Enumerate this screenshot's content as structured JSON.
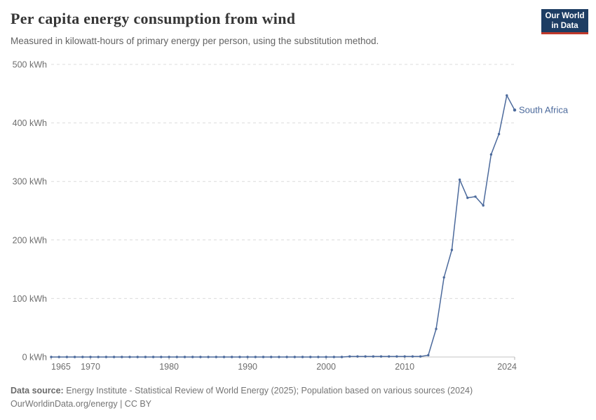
{
  "header": {
    "title": "Per capita energy consumption from wind",
    "subtitle": "Measured in kilowatt-hours of primary energy per person, using the substitution method."
  },
  "logo": {
    "line1": "Our World",
    "line2": "in Data",
    "bg_color": "#1d3d63",
    "accent_color": "#c0392b"
  },
  "chart_data": {
    "type": "line",
    "title": "Per capita energy consumption from wind",
    "xlabel": "",
    "ylabel": "kWh",
    "xlim": [
      1965,
      2024
    ],
    "ylim": [
      0,
      500
    ],
    "grid": "horizontal-dashed",
    "x_ticks": [
      1965,
      1970,
      1980,
      1990,
      2000,
      2010,
      2024
    ],
    "y_ticks": [
      {
        "value": 0,
        "label": "0 kWh"
      },
      {
        "value": 100,
        "label": "100 kWh"
      },
      {
        "value": 200,
        "label": "200 kWh"
      },
      {
        "value": 300,
        "label": "300 kWh"
      },
      {
        "value": 400,
        "label": "400 kWh"
      },
      {
        "value": 500,
        "label": "500 kWh"
      }
    ],
    "x": [
      1965,
      1966,
      1967,
      1968,
      1969,
      1970,
      1971,
      1972,
      1973,
      1974,
      1975,
      1976,
      1977,
      1978,
      1979,
      1980,
      1981,
      1982,
      1983,
      1984,
      1985,
      1986,
      1987,
      1988,
      1989,
      1990,
      1991,
      1992,
      1993,
      1994,
      1995,
      1996,
      1997,
      1998,
      1999,
      2000,
      2001,
      2002,
      2003,
      2004,
      2005,
      2006,
      2007,
      2008,
      2009,
      2010,
      2011,
      2012,
      2013,
      2014,
      2015,
      2016,
      2017,
      2018,
      2019,
      2020,
      2021,
      2022,
      2023,
      2024
    ],
    "series": [
      {
        "name": "South Africa",
        "color": "#4c6a9c",
        "values": [
          0,
          0,
          0,
          0,
          0,
          0,
          0,
          0,
          0,
          0,
          0,
          0,
          0,
          0,
          0,
          0,
          0,
          0,
          0,
          0,
          0,
          0,
          0,
          0,
          0,
          0,
          0,
          0,
          0,
          0,
          0,
          0,
          0,
          0,
          0,
          0,
          0,
          0,
          1,
          1,
          1,
          1,
          1,
          1,
          1,
          1,
          1,
          1,
          3,
          48,
          136,
          183,
          303,
          272,
          274,
          259,
          346,
          381,
          447,
          422
        ]
      }
    ],
    "legend_position": "end-of-line-label"
  },
  "footer": {
    "source_label": "Data source:",
    "source_text": "Energy Institute - Statistical Review of World Energy (2025); Population based on various sources (2024)",
    "license": "OurWorldinData.org/energy | CC BY"
  }
}
